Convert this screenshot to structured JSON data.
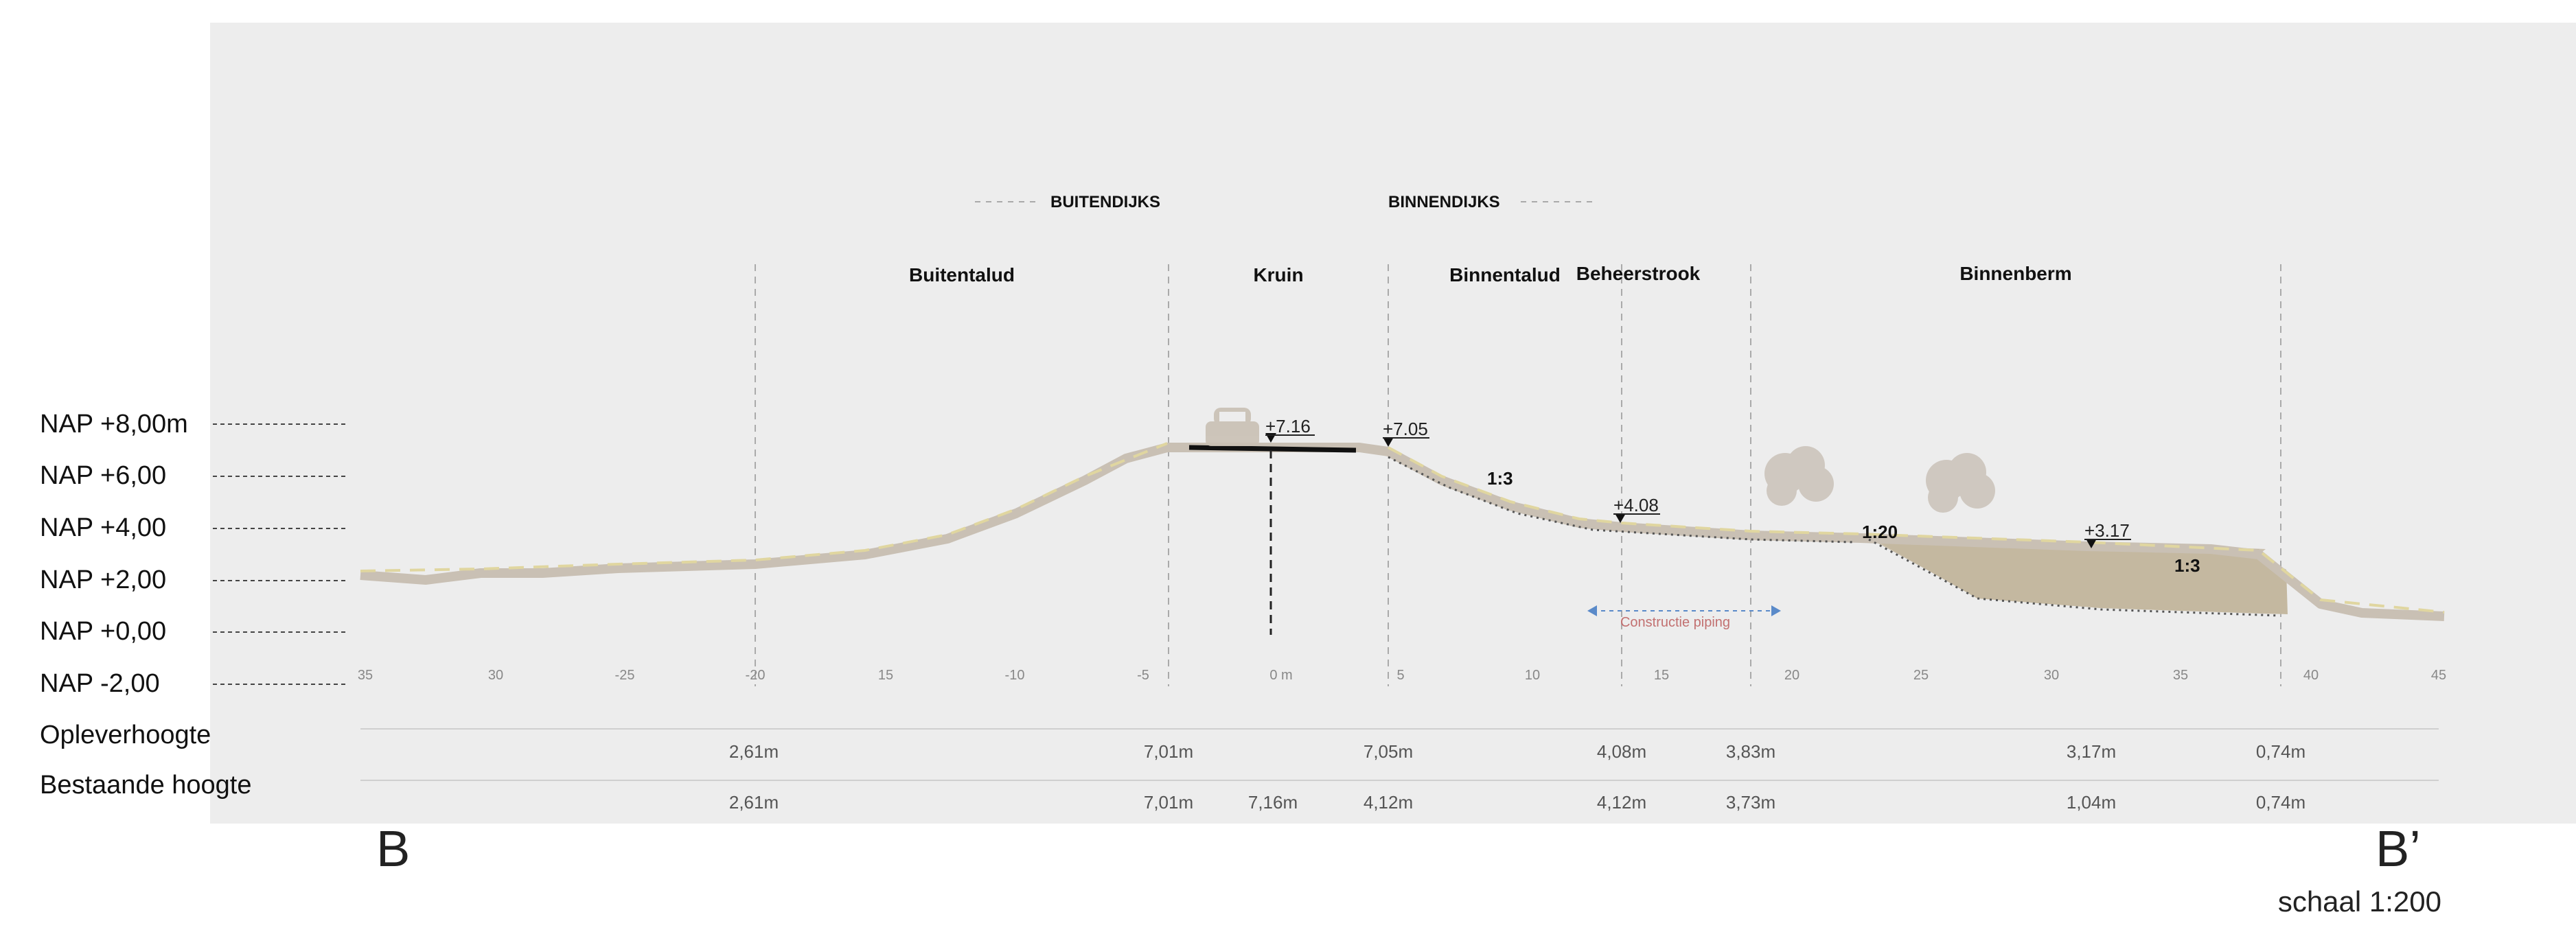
{
  "sides": {
    "outer": "BUITENDIJKS",
    "inner": "BINNENDIJKS"
  },
  "zones": [
    "Buitentalud",
    "Kruin",
    "Binnentalud",
    "Beheerstrook",
    "Binnenberm"
  ],
  "levels": [
    "NAP +8,00m",
    "NAP +6,00",
    "NAP +4,00",
    "NAP +2,00",
    "NAP +0,00",
    "NAP  -2,00"
  ],
  "row_labels": {
    "oplever": "Opleverhoogte",
    "bestaand": "Bestaande hoogte"
  },
  "axis_ticks": [
    "35",
    "30",
    "-25",
    "-20",
    "15",
    "-10",
    "-5",
    "0 m",
    "5",
    "10",
    "15",
    "20",
    "25",
    "30",
    "35",
    "40",
    "45"
  ],
  "elevations": [
    "+7.16",
    "+7.05",
    "+4.08",
    "+3.17"
  ],
  "slopes": [
    "1:3",
    "1:20",
    "1:3"
  ],
  "piping_label": "Constructie piping",
  "opleverhoogte": [
    "2,61m",
    "7,01m",
    "7,05m",
    "4,08m",
    "3,83m",
    "3,17m",
    "0,74m"
  ],
  "bestaande_hoogte": [
    "2,61m",
    "7,01m",
    "7,16m",
    "4,12m",
    "4,12m",
    "3,73m",
    "1,04m",
    "0,74m"
  ],
  "section_start": "B",
  "section_end": "B’",
  "scale": "schaal 1:200",
  "colors": {
    "panel": "#ededed",
    "ground": "#c9c0b4",
    "grass": "#e0d6a0",
    "berm_fill": "#c8bca8",
    "road": "#111111"
  }
}
